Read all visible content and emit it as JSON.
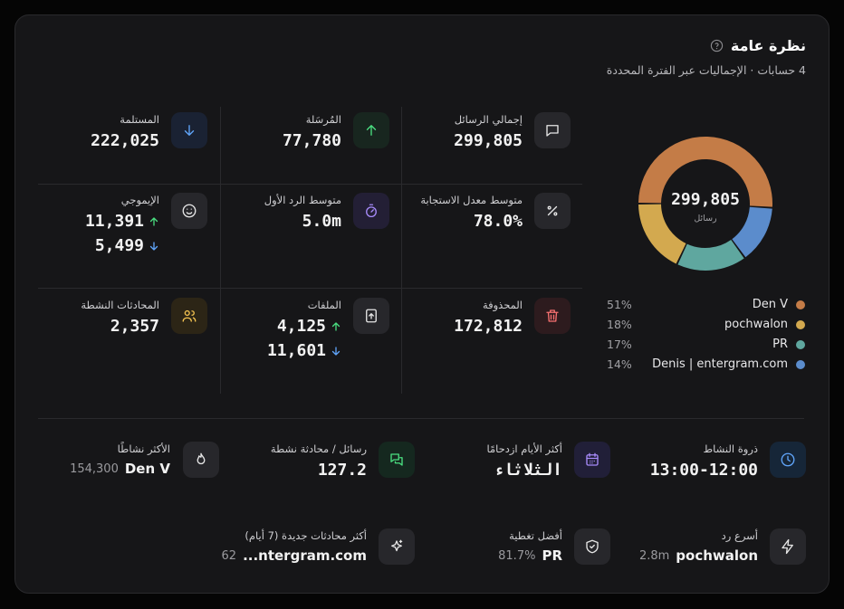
{
  "header": {
    "title": "نظرة عامة",
    "subtitle": "4 حسابات · الإجماليات عبر الفترة المحددة"
  },
  "donut": {
    "center_value": "299,805",
    "center_label": "رسائل",
    "segments": [
      {
        "name": "Den V",
        "color": "#c47c47",
        "value": 51,
        "label": "51%"
      },
      {
        "name": "Denis | entergram.com",
        "color": "#5b8ccc",
        "value": 14,
        "label": "14%"
      },
      {
        "name": "PR",
        "color": "#5fa79f",
        "value": 17,
        "label": "17%"
      },
      {
        "name": "pochwalon",
        "color": "#d3a94f",
        "value": 18,
        "label": "18%"
      }
    ]
  },
  "stats": [
    {
      "label": "إجمالي الرسائل",
      "value": "299,805"
    },
    {
      "label": "المُرسَلة",
      "value": "77,780"
    },
    {
      "label": "المستلمة",
      "value": "222,025"
    },
    {
      "label": "متوسط معدل الاستجابة",
      "value": "78.0%"
    },
    {
      "label": "متوسط الرد الأول",
      "value": "5.0m"
    },
    {
      "label": "الإيموجي",
      "up": "11,391",
      "down": "5,499"
    },
    {
      "label": "المحذوفة",
      "value": "172,812"
    },
    {
      "label": "الملفات",
      "up": "4,125",
      "down": "11,601"
    },
    {
      "label": "المحادثات النشطة",
      "value": "2,357"
    }
  ],
  "highlights": [
    {
      "label": "ذروة النشاط",
      "value": "13:00-12:00"
    },
    {
      "label": "أكثر الأيام ازدحامًا",
      "value": "الثلاثاء"
    },
    {
      "label": "رسائل / محادثة نشطة",
      "value": "127.2"
    },
    {
      "label": "الأكثر نشاطًا",
      "value": "Den V",
      "detail": "154,300"
    },
    {
      "label": "أسرع رد",
      "value": "pochwalon",
      "detail": "2.8m"
    },
    {
      "label": "أفضل تغطية",
      "value": "PR",
      "detail": "81.7%"
    },
    {
      "label": "أكثر محادثات جديدة (7 أيام)",
      "value": "...ntergram.com",
      "detail": "62"
    }
  ]
}
